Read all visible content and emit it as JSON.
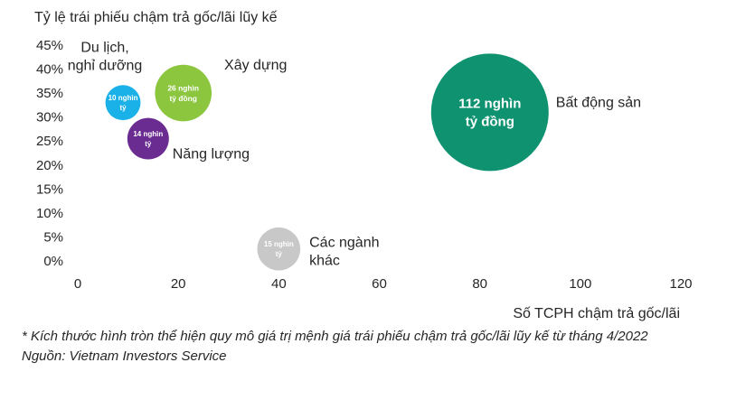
{
  "chart_data": {
    "type": "bubble",
    "ylabel": "Tỷ lệ trái phiếu chậm trả gốc/lãi lũy kế",
    "xlabel": "Số TCPH chậm trả gốc/lãi",
    "xlim": [
      0,
      120
    ],
    "ylim": [
      0,
      45
    ],
    "x_ticks": [
      "0",
      "20",
      "40",
      "60",
      "80",
      "100",
      "120"
    ],
    "y_ticks": [
      "0%",
      "5%",
      "10%",
      "15%",
      "20%",
      "25%",
      "30%",
      "35%",
      "40%",
      "45%"
    ],
    "grid": false,
    "bubble_size_unit": "nghìn tỷ đồng",
    "points": [
      {
        "category": "Du lịch, nghỉ dưỡng",
        "category_lines": [
          "Du lịch,",
          "nghỉ dưỡng"
        ],
        "x": 9,
        "y": 33,
        "size": 10,
        "bubble_label": [
          "10 nghìn",
          "tỷ"
        ],
        "color": "#1ab0e8"
      },
      {
        "category": "Xây dựng",
        "category_lines": [
          "Xây dựng"
        ],
        "x": 21,
        "y": 35,
        "size": 26,
        "bubble_label": [
          "26 nghìn",
          "tỷ đồng"
        ],
        "color": "#8cc63f"
      },
      {
        "category": "Năng lượng",
        "category_lines": [
          "Năng lượng"
        ],
        "x": 14,
        "y": 25.5,
        "size": 14,
        "bubble_label": [
          "14 nghìn",
          "tỷ"
        ],
        "color": "#6b2c91"
      },
      {
        "category": "Các ngành khác",
        "category_lines": [
          "Các ngành",
          "khác"
        ],
        "x": 40,
        "y": 2.5,
        "size": 15,
        "bubble_label": [
          "15 nghìn",
          "tỷ"
        ],
        "color": "#c8c8c8"
      },
      {
        "category": "Bất động sản",
        "category_lines": [
          "Bất động sản"
        ],
        "x": 82,
        "y": 31,
        "size": 112,
        "bubble_label": [
          "112 nghìn",
          "tỷ đồng"
        ],
        "color": "#0e9270"
      }
    ]
  },
  "notes": {
    "size_note": "* Kích thước hình tròn thể hiện quy mô giá trị mệnh giá trái phiếu chậm trả gốc/lãi lũy kế từ tháng 4/2022",
    "source": "Nguồn: Vietnam Investors Service"
  }
}
